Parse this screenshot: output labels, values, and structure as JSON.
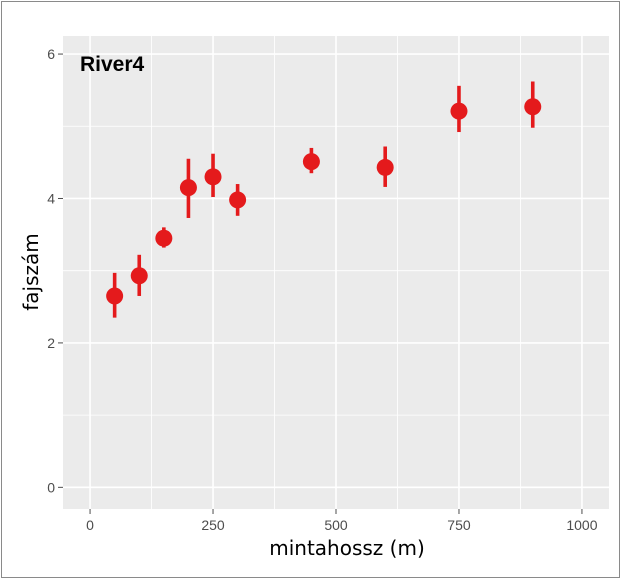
{
  "chart_data": {
    "type": "scatter",
    "annotation": "River4",
    "xlabel": "mintahossz (m)",
    "ylabel": "fajszám",
    "xlim": [
      -55,
      1055
    ],
    "ylim": [
      -0.3,
      6.25
    ],
    "x_ticks": [
      0,
      250,
      500,
      750,
      1000
    ],
    "y_ticks": [
      0,
      2,
      4,
      6
    ],
    "x_tick_labels": [
      "0",
      "250",
      "500",
      "750",
      "1000"
    ],
    "y_tick_labels": [
      "0",
      "2",
      "4",
      "6"
    ],
    "grid": true,
    "legend": "none",
    "point_color": "#e41a1c",
    "panel_color": "#ebebeb",
    "grid_color": "#ffffff",
    "points": [
      {
        "x": 50,
        "y": 2.65,
        "ymin": 2.35,
        "ymax": 2.97
      },
      {
        "x": 100,
        "y": 2.93,
        "ymin": 2.65,
        "ymax": 3.22
      },
      {
        "x": 150,
        "y": 3.45,
        "ymin": 3.32,
        "ymax": 3.6
      },
      {
        "x": 200,
        "y": 4.15,
        "ymin": 3.73,
        "ymax": 4.55
      },
      {
        "x": 250,
        "y": 4.3,
        "ymin": 4.02,
        "ymax": 4.62
      },
      {
        "x": 300,
        "y": 3.98,
        "ymin": 3.76,
        "ymax": 4.2
      },
      {
        "x": 450,
        "y": 4.51,
        "ymin": 4.35,
        "ymax": 4.7
      },
      {
        "x": 600,
        "y": 4.43,
        "ymin": 4.16,
        "ymax": 4.72
      },
      {
        "x": 750,
        "y": 5.21,
        "ymin": 4.92,
        "ymax": 5.56
      },
      {
        "x": 900,
        "y": 5.27,
        "ymin": 4.98,
        "ymax": 5.62
      }
    ]
  }
}
